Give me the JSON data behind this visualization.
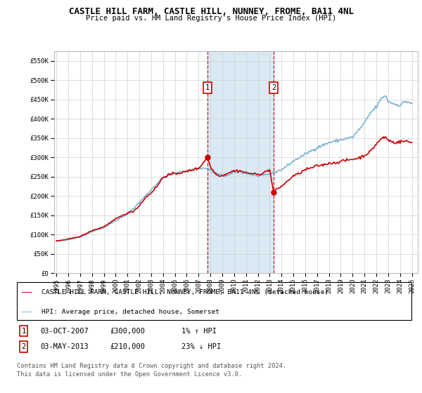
{
  "title": "CASTLE HILL FARM, CASTLE HILL, NUNNEY, FROME, BA11 4NL",
  "subtitle": "Price paid vs. HM Land Registry's House Price Index (HPI)",
  "legend_line1": "CASTLE HILL FARM, CASTLE HILL, NUNNEY, FROME, BA11 4NL (detached house)",
  "legend_line2": "HPI: Average price, detached house, Somerset",
  "footer1": "Contains HM Land Registry data © Crown copyright and database right 2024.",
  "footer2": "This data is licensed under the Open Government Licence v3.0.",
  "annotation1": {
    "num": "1",
    "date": "03-OCT-2007",
    "price": "£300,000",
    "hpi": "1% ↑ HPI"
  },
  "annotation2": {
    "num": "2",
    "date": "03-MAY-2013",
    "price": "£210,000",
    "hpi": "23% ↓ HPI"
  },
  "sale1_year": 2007.75,
  "sale1_price": 300000,
  "sale2_year": 2013.33,
  "sale2_price": 210000,
  "hpi_color": "#7ab3d4",
  "price_color": "#cc0000",
  "shading_color": "#daeaf5",
  "ylim_min": 0,
  "ylim_max": 575000,
  "xlim_min": 1994.8,
  "xlim_max": 2025.5,
  "xtick_years": [
    1995,
    1996,
    1997,
    1998,
    1999,
    2000,
    2001,
    2002,
    2003,
    2004,
    2005,
    2006,
    2007,
    2008,
    2009,
    2010,
    2011,
    2012,
    2013,
    2014,
    2015,
    2016,
    2017,
    2018,
    2019,
    2020,
    2021,
    2022,
    2023,
    2024,
    2025
  ],
  "ytick_values": [
    0,
    50000,
    100000,
    150000,
    200000,
    250000,
    300000,
    350000,
    400000,
    450000,
    500000,
    550000
  ],
  "ytick_labels": [
    "£0",
    "£50K",
    "£100K",
    "£150K",
    "£200K",
    "£250K",
    "£300K",
    "£350K",
    "£400K",
    "£450K",
    "£500K",
    "£550K"
  ]
}
